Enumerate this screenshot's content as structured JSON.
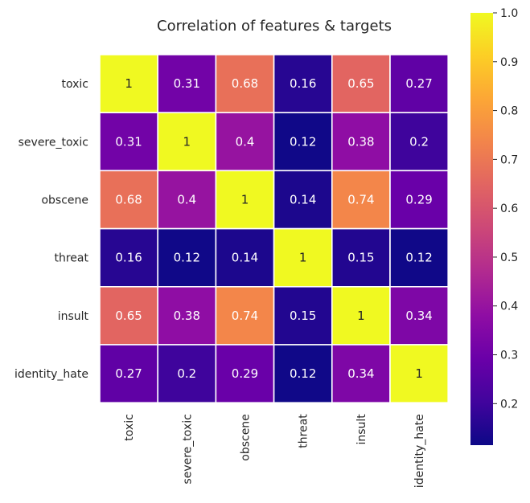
{
  "chart_data": {
    "type": "heatmap",
    "title": "Correlation of features & targets",
    "xlabel": "",
    "ylabel": "",
    "rows": [
      "toxic",
      "severe_toxic",
      "obscene",
      "threat",
      "insult",
      "identity_hate"
    ],
    "columns": [
      "toxic",
      "severe_toxic",
      "obscene",
      "threat",
      "insult",
      "identity_hate"
    ],
    "values": [
      [
        1,
        0.31,
        0.68,
        0.16,
        0.65,
        0.27
      ],
      [
        0.31,
        1,
        0.4,
        0.12,
        0.38,
        0.2
      ],
      [
        0.68,
        0.4,
        1,
        0.14,
        0.74,
        0.29
      ],
      [
        0.16,
        0.12,
        0.14,
        1,
        0.15,
        0.12
      ],
      [
        0.65,
        0.38,
        0.74,
        0.15,
        1,
        0.34
      ],
      [
        0.27,
        0.2,
        0.29,
        0.12,
        0.34,
        1
      ]
    ],
    "value_labels": [
      [
        "1",
        "0.31",
        "0.68",
        "0.16",
        "0.65",
        "0.27"
      ],
      [
        "0.31",
        "1",
        "0.4",
        "0.12",
        "0.38",
        "0.2"
      ],
      [
        "0.68",
        "0.4",
        "1",
        "0.14",
        "0.74",
        "0.29"
      ],
      [
        "0.16",
        "0.12",
        "0.14",
        "1",
        "0.15",
        "0.12"
      ],
      [
        "0.65",
        "0.38",
        "0.74",
        "0.15",
        "1",
        "0.34"
      ],
      [
        "0.27",
        "0.2",
        "0.29",
        "0.12",
        "0.34",
        "1"
      ]
    ],
    "colormap": "plasma",
    "vmin": 0.115,
    "vmax": 1.0,
    "colorbar_ticks": [
      0.2,
      0.3,
      0.4,
      0.5,
      0.6,
      0.7,
      0.8,
      0.9,
      1.0
    ],
    "colorbar_tick_labels": [
      "0.2",
      "0.3",
      "0.4",
      "0.5",
      "0.6",
      "0.7",
      "0.8",
      "0.9",
      "1.0"
    ],
    "colorbar_position": "right",
    "cell_border_color": "#ffffff",
    "text_color": "#262626",
    "annotation_color": "#ffffff",
    "annotation_color_dark": "#262626",
    "grid": false
  }
}
